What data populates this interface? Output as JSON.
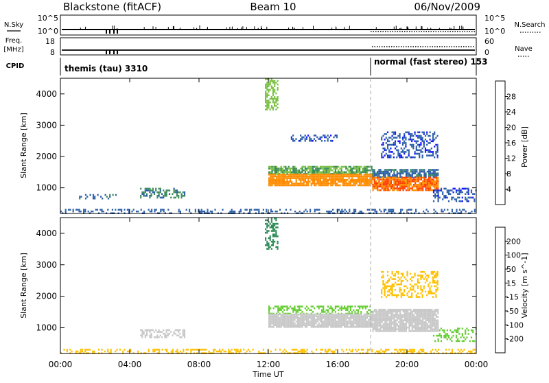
{
  "header": {
    "station": "Blackstone (fitACF)",
    "beam": "Beam 10",
    "date": "06/Nov/2009"
  },
  "top_panels": {
    "nsky_label": "N.Sky",
    "nsky_ticks": [
      "10^5",
      "10^0"
    ],
    "nsearch_label": "N.Search",
    "nsearch_ticks": [
      "10^5",
      "10^0"
    ],
    "freq_label_1": "Freq.",
    "freq_label_2": "[MHz]",
    "freq_ticks": [
      "18",
      "8"
    ],
    "nave_label": "Nave",
    "nave_ticks": [
      "60",
      "0"
    ],
    "cpid_label": "CPID",
    "cpid_segments": [
      {
        "label": "themis (tau) 3310",
        "start": "00:00",
        "end": "18:00"
      },
      {
        "label": "normal (fast stereo) 153",
        "start": "18:00",
        "end": "24:00"
      }
    ]
  },
  "x_axis": {
    "label": "Time UT",
    "ticks": [
      "00:00",
      "04:00",
      "08:00",
      "12:00",
      "16:00",
      "20:00",
      "00:00"
    ],
    "range_hours": [
      0,
      24
    ]
  },
  "chart_data": [
    {
      "type": "heatmap",
      "title": "",
      "xlabel": "Time UT",
      "ylabel": "Slant Range [km]",
      "yticks": [
        1000,
        2000,
        3000,
        4000
      ],
      "ylim": [
        180,
        4500
      ],
      "colorbar": {
        "label": "Power [dB]",
        "ticks": [
          "28",
          "24",
          "20",
          "16",
          "12",
          "8",
          "4"
        ],
        "levels": [
          {
            "from": 28,
            "to": 32,
            "color": "#ff0000"
          },
          {
            "from": 24,
            "to": 28,
            "color": "#ff4000"
          },
          {
            "from": 20,
            "to": 24,
            "color": "#ff8c00"
          },
          {
            "from": 16,
            "to": 20,
            "color": "#ffc800"
          },
          {
            "from": 12,
            "to": 16,
            "color": "#7ac143"
          },
          {
            "from": 8,
            "to": 12,
            "color": "#3c8c5a"
          },
          {
            "from": 4,
            "to": 8,
            "color": "#2c5fa8"
          },
          {
            "from": 0,
            "to": 4,
            "color": "#1414ff"
          }
        ]
      },
      "regions": [
        {
          "t0": 0.0,
          "t1": 24.0,
          "r0": 180,
          "r1": 330,
          "value": 6,
          "density": 0.35
        },
        {
          "t0": 0.9,
          "t1": 3.2,
          "r0": 650,
          "r1": 800,
          "value": 7,
          "density": 0.25
        },
        {
          "t0": 4.6,
          "t1": 7.2,
          "r0": 700,
          "r1": 1000,
          "value": 9,
          "density": 0.45
        },
        {
          "t0": 11.8,
          "t1": 12.5,
          "r0": 3500,
          "r1": 4500,
          "value": 14,
          "density": 0.5
        },
        {
          "t0": 12.0,
          "t1": 18.0,
          "r0": 1450,
          "r1": 1700,
          "value": 12,
          "density": 0.8
        },
        {
          "t0": 12.0,
          "t1": 18.0,
          "r0": 1100,
          "r1": 1450,
          "value": 22,
          "density": 0.9
        },
        {
          "t0": 18.0,
          "t1": 21.8,
          "r0": 1350,
          "r1": 1600,
          "value": 7,
          "density": 0.8
        },
        {
          "t0": 18.0,
          "t1": 21.8,
          "r0": 900,
          "r1": 1350,
          "value": 24,
          "density": 0.85
        },
        {
          "t0": 13.3,
          "t1": 16.0,
          "r0": 2500,
          "r1": 2700,
          "value": 5,
          "density": 0.35
        },
        {
          "t0": 18.5,
          "t1": 21.8,
          "r0": 2000,
          "r1": 2800,
          "value": 5,
          "density": 0.45
        },
        {
          "t0": 21.5,
          "t1": 24.0,
          "r0": 600,
          "r1": 1000,
          "value": 5,
          "density": 0.35
        }
      ]
    },
    {
      "type": "heatmap",
      "title": "",
      "xlabel": "Time UT",
      "ylabel": "Slant Range [km]",
      "yticks": [
        1000,
        2000,
        3000,
        4000
      ],
      "ylim": [
        180,
        4500
      ],
      "colorbar": {
        "label": "Velocity [m s^-1]",
        "ticks": [
          "200",
          "100",
          "50",
          "15",
          "-15",
          "-50",
          "-100",
          "-200"
        ],
        "levels": [
          {
            "from": 200,
            "to": 300,
            "color": "#0a1aa0"
          },
          {
            "from": 100,
            "to": 200,
            "color": "#1f4fbf"
          },
          {
            "from": 50,
            "to": 100,
            "color": "#2e8b57"
          },
          {
            "from": 15,
            "to": 50,
            "color": "#66cc33"
          },
          {
            "from": -15,
            "to": 15,
            "color": "#c8c8c8"
          },
          {
            "from": -50,
            "to": -15,
            "color": "#ffc000"
          },
          {
            "from": -100,
            "to": -50,
            "color": "#ff8000"
          },
          {
            "from": -200,
            "to": -100,
            "color": "#ff4000"
          },
          {
            "from": -300,
            "to": -200,
            "color": "#ff0000"
          }
        ]
      },
      "regions": [
        {
          "t0": 0.0,
          "t1": 24.0,
          "r0": 180,
          "r1": 330,
          "value": -30,
          "density": 0.35
        },
        {
          "t0": 4.6,
          "t1": 7.2,
          "r0": 700,
          "r1": 950,
          "value": 0,
          "density": 0.45
        },
        {
          "t0": 11.8,
          "t1": 12.5,
          "r0": 3500,
          "r1": 4500,
          "value": 60,
          "density": 0.45
        },
        {
          "t0": 12.0,
          "t1": 18.0,
          "r0": 1450,
          "r1": 1700,
          "value": 30,
          "density": 0.5
        },
        {
          "t0": 12.0,
          "t1": 18.0,
          "r0": 1000,
          "r1": 1450,
          "value": 0,
          "density": 0.95
        },
        {
          "t0": 18.0,
          "t1": 21.8,
          "r0": 900,
          "r1": 1600,
          "value": 0,
          "density": 0.9
        },
        {
          "t0": 18.5,
          "t1": 21.8,
          "r0": 2000,
          "r1": 2800,
          "value": -40,
          "density": 0.35
        },
        {
          "t0": 21.5,
          "t1": 24.0,
          "r0": 600,
          "r1": 1000,
          "value": 30,
          "density": 0.3
        }
      ]
    }
  ]
}
